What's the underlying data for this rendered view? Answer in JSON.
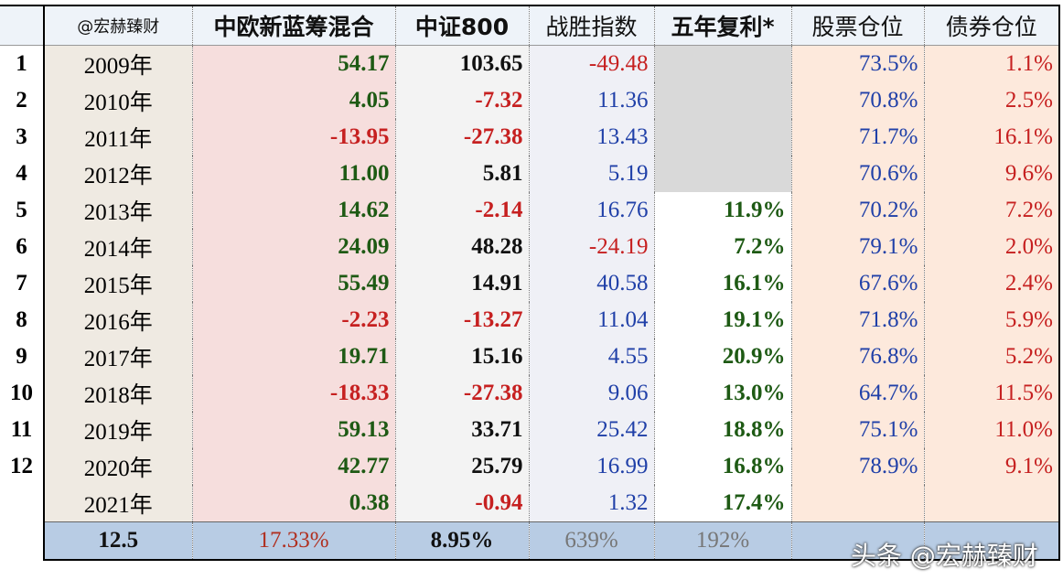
{
  "table": {
    "header": [
      "@宏赫臻财",
      "中欧新蓝筹混合",
      "中证800",
      "战胜指数",
      "五年复利*",
      "股票仓位",
      "债券仓位"
    ],
    "rows": [
      {
        "number": "1",
        "cells": [
          "2009年",
          "54.17",
          "103.65",
          "-49.48",
          null,
          "73.5%",
          "1.1%"
        ]
      },
      {
        "number": "2",
        "cells": [
          "2010年",
          "4.05",
          "-7.32",
          "11.36",
          null,
          "70.8%",
          "2.5%"
        ]
      },
      {
        "number": "3",
        "cells": [
          "2011年",
          "-13.95",
          "-27.38",
          "13.43",
          null,
          "71.7%",
          "16.1%"
        ]
      },
      {
        "number": "4",
        "cells": [
          "2012年",
          "11.00",
          "5.81",
          "5.19",
          null,
          "70.6%",
          "9.6%"
        ]
      },
      {
        "number": "5",
        "cells": [
          "2013年",
          "14.62",
          "-2.14",
          "16.76",
          "11.9%",
          "70.2%",
          "7.2%"
        ]
      },
      {
        "number": "6",
        "cells": [
          "2014年",
          "24.09",
          "48.28",
          "-24.19",
          "7.2%",
          "79.1%",
          "2.0%"
        ]
      },
      {
        "number": "7",
        "cells": [
          "2015年",
          "55.49",
          "14.91",
          "40.58",
          "16.1%",
          "67.6%",
          "2.4%"
        ]
      },
      {
        "number": "8",
        "cells": [
          "2016年",
          "-2.23",
          "-13.27",
          "11.04",
          "19.1%",
          "71.8%",
          "5.9%"
        ]
      },
      {
        "number": "9",
        "cells": [
          "2017年",
          "19.71",
          "15.16",
          "4.55",
          "20.9%",
          "76.8%",
          "5.2%"
        ]
      },
      {
        "number": "10",
        "cells": [
          "2018年",
          "-18.33",
          "-27.38",
          "9.06",
          "13.0%",
          "64.7%",
          "11.5%"
        ]
      },
      {
        "number": "11",
        "cells": [
          "2019年",
          "59.13",
          "33.71",
          "25.42",
          "18.8%",
          "75.1%",
          "11.0%"
        ]
      },
      {
        "number": "12",
        "cells": [
          "2020年",
          "42.77",
          "25.79",
          "16.99",
          "16.8%",
          "78.9%",
          "9.1%"
        ]
      },
      {
        "number": null,
        "cells": [
          "2021年",
          "0.38",
          "-0.94",
          "1.32",
          "17.4%",
          null,
          null
        ]
      }
    ],
    "footer": [
      "12.5",
      "17.33%",
      "8.95%",
      "639%",
      "192%"
    ]
  },
  "watermark": "头条 @宏赫臻财"
}
